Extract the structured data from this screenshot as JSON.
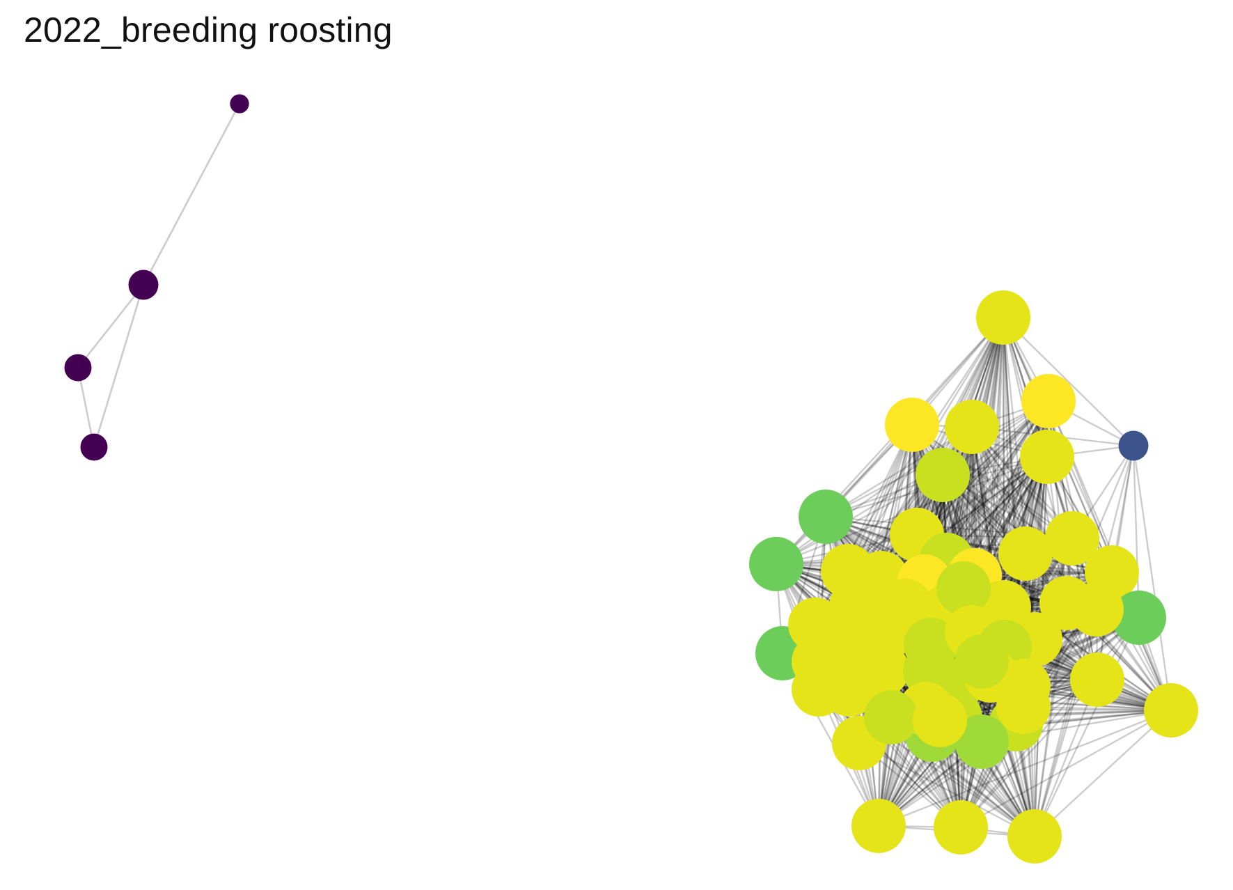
{
  "title": "2022_breeding roosting",
  "network": {
    "edge_color": "#000000",
    "palette": {
      "purple": "#440154",
      "blue": "#3b528b",
      "green": "#6ccd5a",
      "lime": "#a0da39",
      "yellowgreen": "#c8e020",
      "yellow": "#e5e419",
      "brightyellow": "#fde725"
    },
    "components": [
      {
        "name": "small-component",
        "nodes": [
          {
            "id": "a1",
            "color": "purple",
            "size": 0.35
          },
          {
            "id": "a2",
            "color": "purple",
            "size": 0.55
          },
          {
            "id": "a3",
            "color": "purple",
            "size": 0.5
          },
          {
            "id": "a4",
            "color": "purple",
            "size": 0.5
          }
        ],
        "edges": [
          [
            "a1",
            "a2"
          ],
          [
            "a2",
            "a3"
          ],
          [
            "a2",
            "a4"
          ],
          [
            "a3",
            "a4"
          ]
        ]
      },
      {
        "name": "large-component",
        "nodes": [
          {
            "id": "b1",
            "color": "yellow"
          },
          {
            "id": "b2",
            "color": "brightyellow"
          },
          {
            "id": "b3",
            "color": "brightyellow"
          },
          {
            "id": "b4",
            "color": "yellow"
          },
          {
            "id": "b5",
            "color": "blue",
            "size": 0.55
          },
          {
            "id": "b6",
            "color": "yellow"
          },
          {
            "id": "b7",
            "color": "yellowgreen"
          },
          {
            "id": "b8",
            "color": "green"
          },
          {
            "id": "b9",
            "color": "green"
          },
          {
            "id": "b10",
            "color": "yellow"
          },
          {
            "id": "b11",
            "color": "yellowgreen"
          },
          {
            "id": "b12",
            "color": "yellow"
          },
          {
            "id": "b13",
            "color": "yellow"
          },
          {
            "id": "b14",
            "color": "yellow"
          },
          {
            "id": "b15",
            "color": "green"
          },
          {
            "id": "b16",
            "color": "green"
          },
          {
            "id": "b17",
            "color": "yellow"
          },
          {
            "id": "b18",
            "color": "yellow"
          },
          {
            "id": "b19",
            "color": "brightyellow"
          },
          {
            "id": "b20",
            "color": "brightyellow"
          },
          {
            "id": "b21",
            "color": "yellow"
          },
          {
            "id": "b22",
            "color": "yellow"
          },
          {
            "id": "b23",
            "color": "yellow"
          },
          {
            "id": "b24",
            "color": "yellow"
          },
          {
            "id": "b25",
            "color": "yellow"
          },
          {
            "id": "b26",
            "color": "yellow"
          },
          {
            "id": "b27",
            "color": "yellowgreen"
          },
          {
            "id": "b28",
            "color": "yellow"
          },
          {
            "id": "b29",
            "color": "yellow"
          },
          {
            "id": "b30",
            "color": "yellow"
          },
          {
            "id": "b31",
            "color": "yellowgreen"
          },
          {
            "id": "b32",
            "color": "yellow"
          },
          {
            "id": "b33",
            "color": "yellow"
          },
          {
            "id": "b34",
            "color": "yellow"
          },
          {
            "id": "b35",
            "color": "yellowgreen"
          },
          {
            "id": "b36",
            "color": "yellow"
          },
          {
            "id": "b37",
            "color": "yellow"
          },
          {
            "id": "b38",
            "color": "yellow"
          },
          {
            "id": "b39",
            "color": "yellowgreen"
          },
          {
            "id": "b40",
            "color": "yellowgreen"
          },
          {
            "id": "b41",
            "color": "yellow"
          },
          {
            "id": "b42",
            "color": "yellowgreen"
          },
          {
            "id": "b43",
            "color": "yellowgreen"
          },
          {
            "id": "b44",
            "color": "yellow"
          },
          {
            "id": "b45",
            "color": "lime"
          },
          {
            "id": "b46",
            "color": "lime"
          },
          {
            "id": "b47",
            "color": "yellow"
          },
          {
            "id": "b48",
            "color": "yellow"
          },
          {
            "id": "b49",
            "color": "yellow"
          },
          {
            "id": "b50",
            "color": "yellowgreen"
          },
          {
            "id": "b51",
            "color": "yellow"
          },
          {
            "id": "b52",
            "color": "yellow"
          },
          {
            "id": "b53",
            "color": "yellowgreen"
          },
          {
            "id": "b54",
            "color": "yellow"
          },
          {
            "id": "b55",
            "color": "yellow"
          },
          {
            "id": "b56",
            "color": "yellow"
          },
          {
            "id": "b57",
            "color": "yellow"
          },
          {
            "id": "b58",
            "color": "yellow"
          }
        ]
      }
    ]
  }
}
